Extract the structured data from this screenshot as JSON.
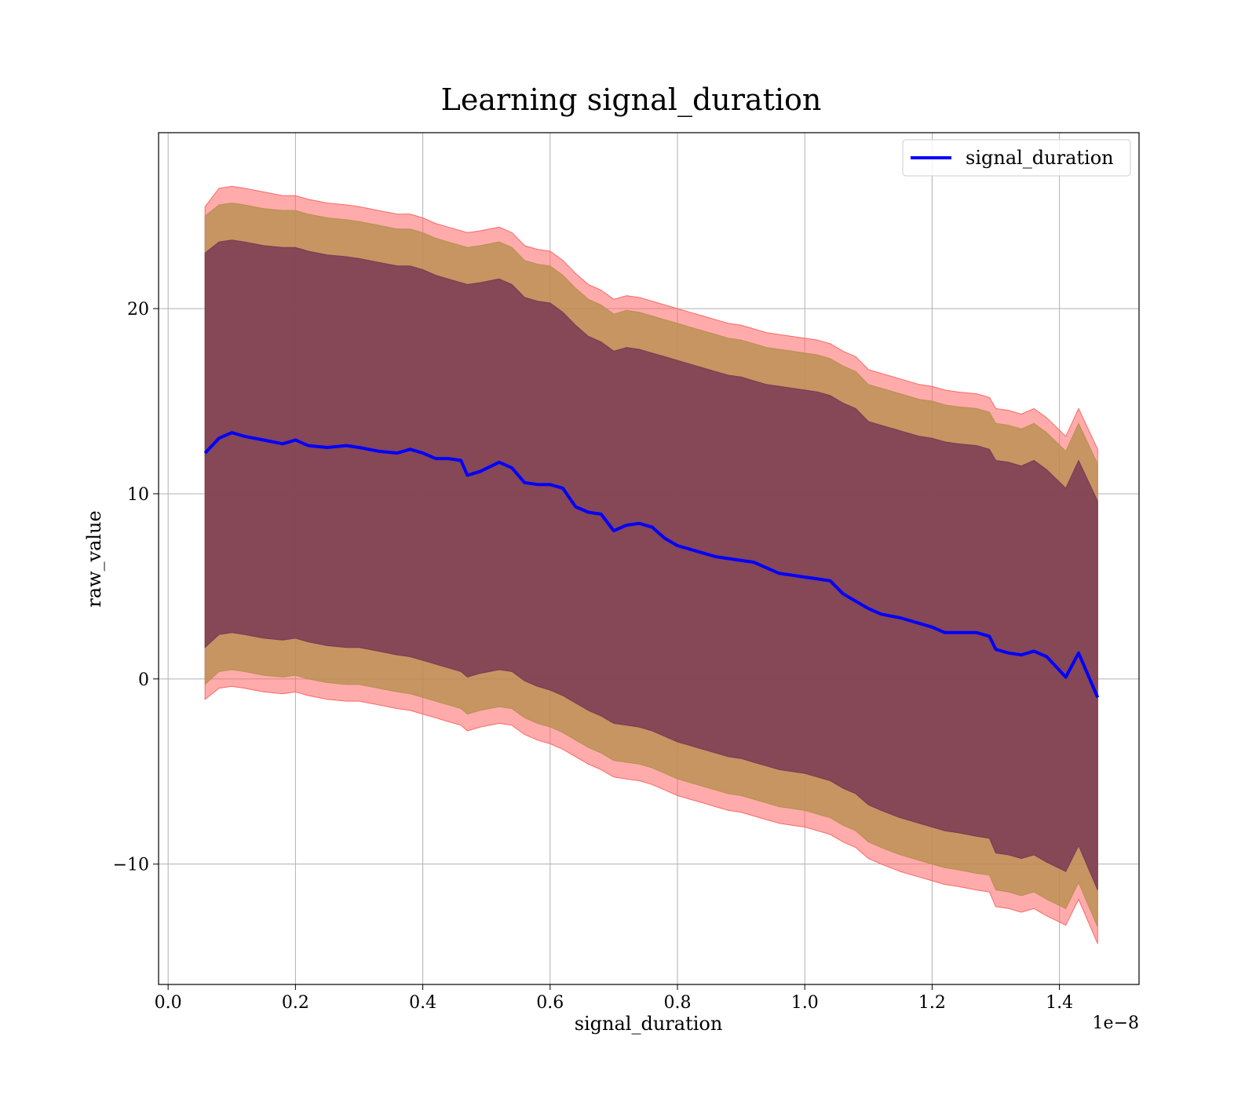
{
  "chart_data": {
    "type": "area",
    "title": "Learning signal_duration",
    "xlabel": "signal_duration",
    "ylabel": "raw_value",
    "x_offset_label": "1e−8",
    "xlim": [
      -0.015,
      1.525
    ],
    "ylim": [
      -16.5,
      29.5
    ],
    "x_ticks": [
      0.0,
      0.2,
      0.4,
      0.6,
      0.8,
      1.0,
      1.2,
      1.4
    ],
    "x_tick_labels": [
      "0.0",
      "0.2",
      "0.4",
      "0.6",
      "0.8",
      "1.0",
      "1.2",
      "1.4"
    ],
    "y_ticks": [
      20,
      10,
      0,
      -10
    ],
    "y_tick_labels": [
      "20",
      "10",
      "0",
      "−10"
    ],
    "grid": true,
    "legend": {
      "placement": "upper right",
      "entries": [
        "signal_duration"
      ]
    },
    "colors": {
      "line": "#0000ff",
      "band_outer": "#ff6666",
      "band_middle": "#b89050",
      "band_inner": "#7a3a55"
    },
    "series": [
      {
        "name": "signal_duration",
        "x": [
          0.058,
          0.08,
          0.1,
          0.12,
          0.15,
          0.18,
          0.2,
          0.22,
          0.25,
          0.28,
          0.3,
          0.33,
          0.36,
          0.38,
          0.4,
          0.42,
          0.44,
          0.46,
          0.47,
          0.49,
          0.52,
          0.54,
          0.56,
          0.58,
          0.6,
          0.62,
          0.64,
          0.66,
          0.68,
          0.7,
          0.72,
          0.74,
          0.76,
          0.78,
          0.8,
          0.82,
          0.84,
          0.86,
          0.88,
          0.9,
          0.92,
          0.94,
          0.96,
          0.98,
          1.0,
          1.02,
          1.04,
          1.06,
          1.08,
          1.1,
          1.12,
          1.15,
          1.18,
          1.2,
          1.22,
          1.24,
          1.27,
          1.29,
          1.3,
          1.32,
          1.34,
          1.36,
          1.38,
          1.41,
          1.43,
          1.46
        ],
        "values": [
          12.2,
          13.0,
          13.3,
          13.1,
          12.9,
          12.7,
          12.9,
          12.6,
          12.5,
          12.6,
          12.5,
          12.3,
          12.2,
          12.4,
          12.2,
          11.9,
          11.9,
          11.8,
          11.0,
          11.2,
          11.7,
          11.4,
          10.6,
          10.5,
          10.5,
          10.3,
          9.3,
          9.0,
          8.9,
          8.0,
          8.3,
          8.4,
          8.2,
          7.6,
          7.2,
          7.0,
          6.8,
          6.6,
          6.5,
          6.4,
          6.3,
          6.0,
          5.7,
          5.6,
          5.5,
          5.4,
          5.3,
          4.6,
          4.2,
          3.8,
          3.5,
          3.3,
          3.0,
          2.8,
          2.5,
          2.5,
          2.5,
          2.3,
          1.6,
          1.4,
          1.3,
          1.5,
          1.2,
          0.1,
          1.4,
          -1.0
        ]
      }
    ],
    "bands": [
      {
        "name": "outer",
        "upper": [
          25.5,
          26.5,
          26.6,
          26.5,
          26.3,
          26.1,
          26.1,
          25.9,
          25.7,
          25.6,
          25.5,
          25.3,
          25.1,
          25.1,
          24.9,
          24.6,
          24.4,
          24.2,
          24.1,
          24.2,
          24.4,
          24.1,
          23.4,
          23.2,
          23.1,
          22.6,
          21.9,
          21.3,
          21.0,
          20.5,
          20.7,
          20.6,
          20.4,
          20.2,
          20.0,
          19.8,
          19.6,
          19.4,
          19.2,
          19.1,
          18.9,
          18.7,
          18.6,
          18.5,
          18.4,
          18.3,
          18.1,
          17.7,
          17.4,
          16.7,
          16.5,
          16.2,
          15.9,
          15.8,
          15.6,
          15.5,
          15.4,
          15.2,
          14.6,
          14.5,
          14.3,
          14.6,
          14.1,
          13.1,
          14.6,
          12.4
        ],
        "lower": [
          -1.1,
          -0.5,
          -0.4,
          -0.5,
          -0.7,
          -0.8,
          -0.7,
          -0.9,
          -1.1,
          -1.2,
          -1.2,
          -1.4,
          -1.6,
          -1.7,
          -1.9,
          -2.1,
          -2.3,
          -2.5,
          -2.8,
          -2.6,
          -2.4,
          -2.5,
          -3.0,
          -3.3,
          -3.5,
          -3.8,
          -4.2,
          -4.6,
          -4.9,
          -5.3,
          -5.4,
          -5.5,
          -5.7,
          -6.0,
          -6.3,
          -6.5,
          -6.7,
          -6.9,
          -7.1,
          -7.2,
          -7.4,
          -7.6,
          -7.8,
          -7.9,
          -8.0,
          -8.2,
          -8.4,
          -8.8,
          -9.1,
          -9.7,
          -10.0,
          -10.4,
          -10.7,
          -10.9,
          -11.1,
          -11.2,
          -11.4,
          -11.5,
          -12.3,
          -12.4,
          -12.6,
          -12.4,
          -12.8,
          -13.3,
          -11.9,
          -14.3
        ]
      },
      {
        "name": "middle",
        "upper": [
          25.0,
          25.6,
          25.7,
          25.6,
          25.4,
          25.3,
          25.3,
          25.1,
          24.9,
          24.8,
          24.7,
          24.5,
          24.3,
          24.3,
          24.1,
          23.8,
          23.6,
          23.4,
          23.3,
          23.4,
          23.6,
          23.3,
          22.6,
          22.4,
          22.3,
          21.8,
          21.1,
          20.5,
          20.2,
          19.7,
          19.9,
          19.8,
          19.6,
          19.4,
          19.2,
          19.0,
          18.8,
          18.6,
          18.4,
          18.3,
          18.1,
          17.9,
          17.8,
          17.7,
          17.6,
          17.5,
          17.3,
          16.9,
          16.6,
          15.9,
          15.7,
          15.4,
          15.1,
          15.0,
          14.8,
          14.7,
          14.6,
          14.4,
          13.8,
          13.7,
          13.5,
          13.8,
          13.3,
          12.3,
          13.8,
          11.6
        ],
        "lower": [
          -0.3,
          0.4,
          0.5,
          0.4,
          0.2,
          0.1,
          0.2,
          0.0,
          -0.2,
          -0.3,
          -0.3,
          -0.5,
          -0.7,
          -0.8,
          -1.0,
          -1.2,
          -1.4,
          -1.6,
          -1.9,
          -1.7,
          -1.5,
          -1.6,
          -2.1,
          -2.4,
          -2.6,
          -2.9,
          -3.3,
          -3.7,
          -4.0,
          -4.4,
          -4.5,
          -4.6,
          -4.8,
          -5.1,
          -5.4,
          -5.6,
          -5.8,
          -6.0,
          -6.2,
          -6.3,
          -6.5,
          -6.7,
          -6.9,
          -7.0,
          -7.1,
          -7.3,
          -7.5,
          -7.9,
          -8.2,
          -8.8,
          -9.1,
          -9.5,
          -9.8,
          -10.0,
          -10.2,
          -10.3,
          -10.5,
          -10.6,
          -11.4,
          -11.5,
          -11.7,
          -11.5,
          -11.9,
          -12.4,
          -11.0,
          -13.4
        ]
      },
      {
        "name": "inner",
        "upper": [
          23.0,
          23.6,
          23.7,
          23.6,
          23.4,
          23.3,
          23.3,
          23.1,
          22.9,
          22.8,
          22.7,
          22.5,
          22.3,
          22.3,
          22.1,
          21.8,
          21.6,
          21.4,
          21.3,
          21.4,
          21.6,
          21.3,
          20.6,
          20.4,
          20.3,
          19.8,
          19.1,
          18.5,
          18.2,
          17.7,
          17.9,
          17.8,
          17.6,
          17.4,
          17.2,
          17.0,
          16.8,
          16.6,
          16.4,
          16.3,
          16.1,
          15.9,
          15.8,
          15.7,
          15.6,
          15.5,
          15.3,
          14.9,
          14.6,
          13.9,
          13.7,
          13.4,
          13.1,
          13.0,
          12.8,
          12.7,
          12.6,
          12.4,
          11.8,
          11.7,
          11.5,
          11.8,
          11.3,
          10.3,
          11.8,
          9.6
        ],
        "lower": [
          1.7,
          2.4,
          2.5,
          2.4,
          2.2,
          2.1,
          2.2,
          2.0,
          1.8,
          1.7,
          1.7,
          1.5,
          1.3,
          1.2,
          1.0,
          0.8,
          0.6,
          0.4,
          0.1,
          0.3,
          0.5,
          0.4,
          -0.1,
          -0.4,
          -0.6,
          -0.9,
          -1.3,
          -1.7,
          -2.0,
          -2.4,
          -2.5,
          -2.6,
          -2.8,
          -3.1,
          -3.4,
          -3.6,
          -3.8,
          -4.0,
          -4.2,
          -4.3,
          -4.5,
          -4.7,
          -4.9,
          -5.0,
          -5.1,
          -5.3,
          -5.5,
          -5.9,
          -6.2,
          -6.8,
          -7.1,
          -7.5,
          -7.8,
          -8.0,
          -8.2,
          -8.3,
          -8.5,
          -8.6,
          -9.4,
          -9.5,
          -9.7,
          -9.5,
          -9.9,
          -10.4,
          -9.0,
          -11.4
        ]
      }
    ]
  }
}
